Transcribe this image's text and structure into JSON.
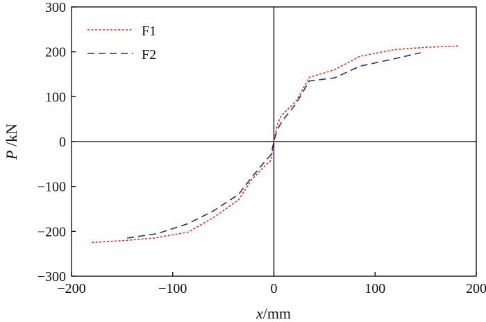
{
  "chart_data": {
    "type": "line",
    "title": "",
    "xlabel": {
      "var": "x",
      "unit": "/mm"
    },
    "ylabel": {
      "var": "P",
      "unit": " /kN"
    },
    "xlim": [
      -200,
      200
    ],
    "ylim": [
      -300,
      300
    ],
    "xticks": [
      -200,
      -100,
      0,
      100,
      200
    ],
    "yticks": [
      -300,
      -200,
      -100,
      0,
      100,
      200,
      300
    ],
    "xtick_labels": [
      "−200",
      "−100",
      "0",
      "100",
      "200"
    ],
    "ytick_labels": [
      "−300",
      "−200",
      "−100",
      "0",
      "100",
      "200",
      "300"
    ],
    "grid": false,
    "legend_position": "top-left",
    "series": [
      {
        "name": "F1",
        "color": "#e8281e",
        "dash": "dotted",
        "x": [
          -180,
          -145,
          -118,
          -85,
          -60,
          -35,
          -22,
          -8,
          -3,
          0,
          3,
          7,
          22,
          35,
          60,
          85,
          120,
          150,
          183
        ],
        "y": [
          -225,
          -220,
          -215,
          -202,
          -170,
          -130,
          -85,
          -52,
          -42,
          0,
          35,
          57,
          90,
          143,
          160,
          190,
          205,
          210,
          213
        ]
      },
      {
        "name": "F2",
        "color": "#2b2a78",
        "dash": "dashed",
        "x": [
          -145,
          -115,
          -85,
          -60,
          -35,
          -22,
          -8,
          -3,
          0,
          3,
          8,
          22,
          35,
          60,
          85,
          120,
          145
        ],
        "y": [
          -215,
          -205,
          -183,
          -155,
          -118,
          -80,
          -42,
          -30,
          0,
          25,
          45,
          85,
          135,
          142,
          168,
          185,
          198
        ]
      }
    ]
  }
}
